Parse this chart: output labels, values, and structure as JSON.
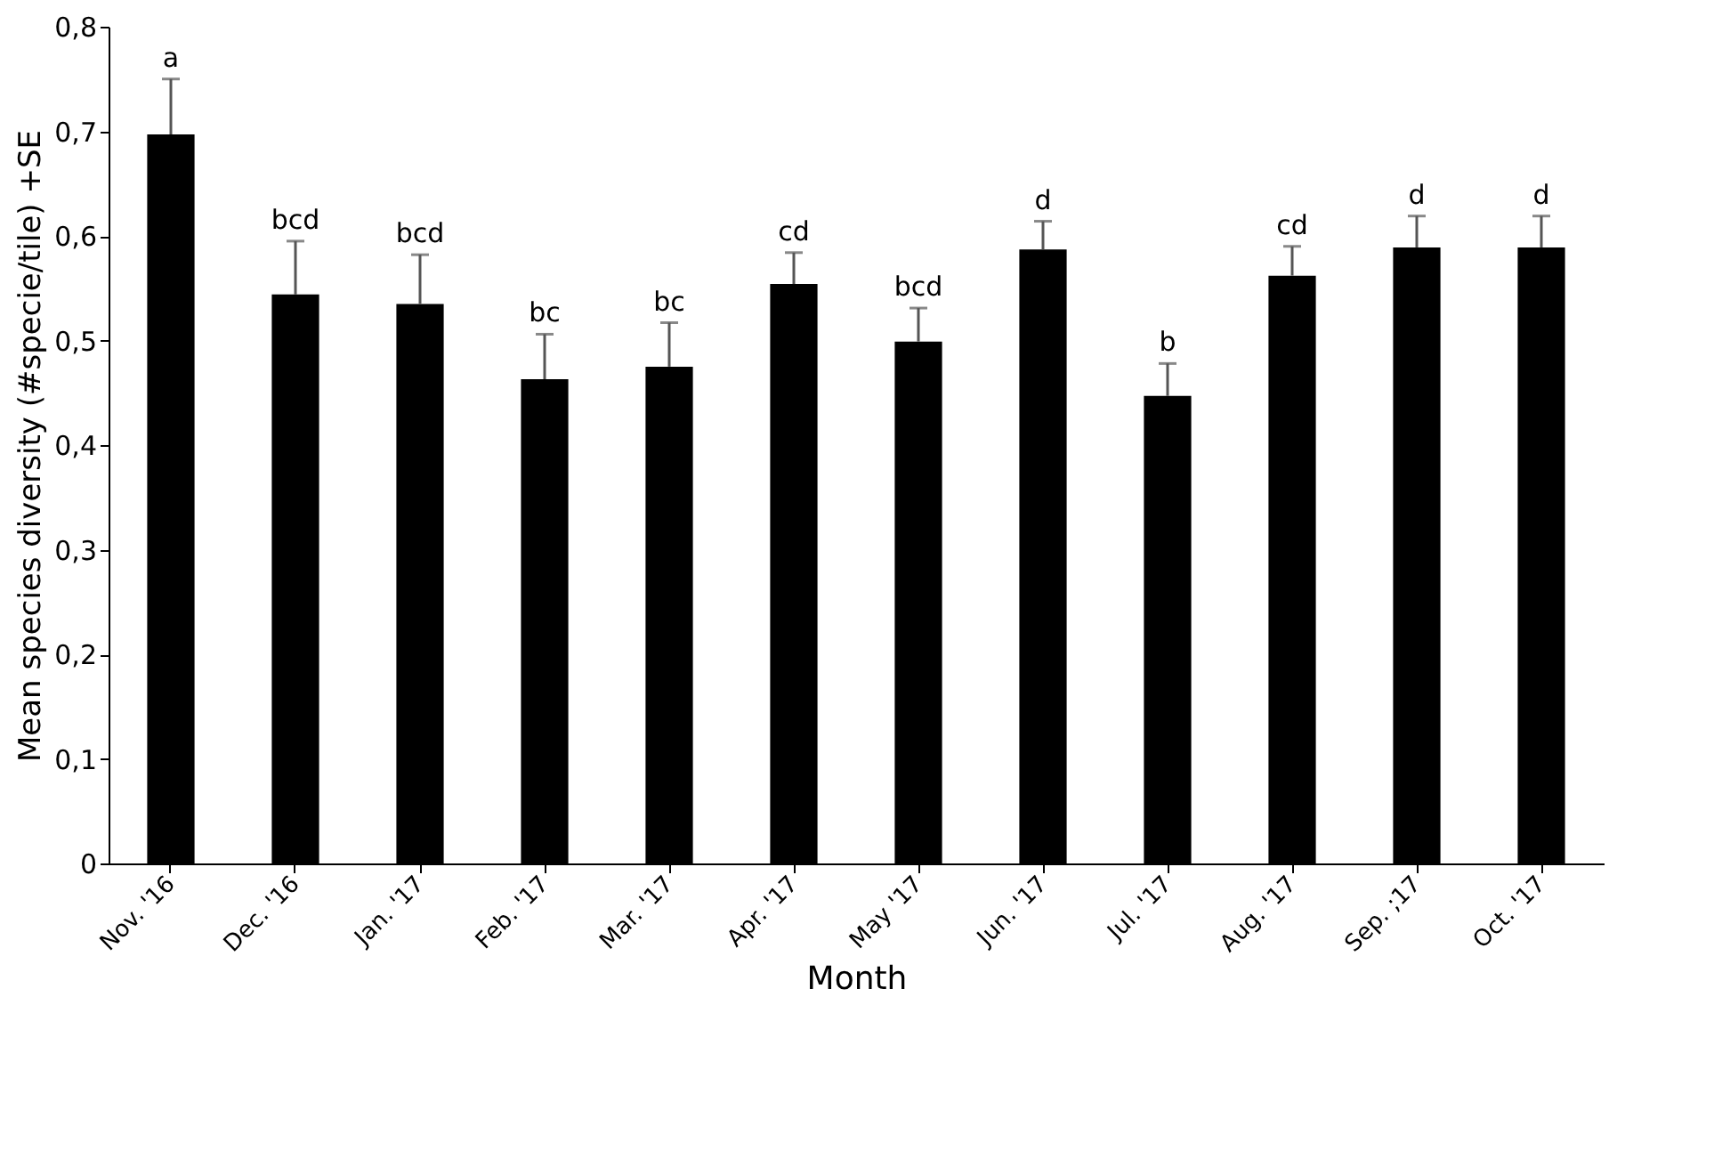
{
  "chart_data": {
    "type": "bar",
    "xlabel": "Month",
    "ylabel": "Mean species diversity (#specie/tile) +SE",
    "categories": [
      "Nov. '16",
      "Dec. '16",
      "Jan. '17",
      "Feb. '17",
      "Mar. '17",
      "Apr. '17",
      "May '17",
      "Jun. '17",
      "Jul. '17",
      "Aug. '17",
      "Sep. ;17",
      "Oct. '17"
    ],
    "series": [
      {
        "color": "#000000",
        "values": [
          0.697,
          0.544,
          0.535,
          0.463,
          0.475,
          0.554,
          0.499,
          0.587,
          0.447,
          0.562,
          0.589,
          0.589
        ],
        "errors": [
          [
            0.697,
            0.75
          ],
          [
            0.544,
            0.595
          ],
          [
            0.535,
            0.582
          ],
          [
            0.463,
            0.506
          ],
          [
            0.475,
            0.517
          ],
          [
            0.554,
            0.584
          ],
          [
            0.499,
            0.531
          ],
          [
            0.587,
            0.614
          ],
          [
            0.447,
            0.478
          ],
          [
            0.562,
            0.59
          ],
          [
            0.589,
            0.619
          ],
          [
            0.589,
            0.619
          ]
        ]
      }
    ],
    "annotations": [
      {
        "text": "a",
        "x": "Nov. '16",
        "y": 0.75
      },
      {
        "text": "bcd",
        "x": "Dec. '16",
        "y": 0.595
      },
      {
        "text": "bcd",
        "x": "Jan. '17",
        "y": 0.582
      },
      {
        "text": "bc",
        "x": "Feb. '17",
        "y": 0.506
      },
      {
        "text": "bc",
        "x": "Mar. '17",
        "y": 0.517
      },
      {
        "text": "cd",
        "x": "Apr. '17",
        "y": 0.584
      },
      {
        "text": "bcd",
        "x": "May '17",
        "y": 0.531
      },
      {
        "text": "d",
        "x": "Jun. '17",
        "y": 0.614
      },
      {
        "text": "b",
        "x": "Jul. '17",
        "y": 0.478
      },
      {
        "text": "cd",
        "x": "Aug. '17",
        "y": 0.59
      },
      {
        "text": "d",
        "x": "Sep. ;17",
        "y": 0.619
      },
      {
        "text": "d",
        "x": "Oct. '17",
        "y": 0.619
      }
    ],
    "ylim": [
      0,
      0.8
    ],
    "yticks": [
      0,
      {
        "value": 0.1,
        "label": "0,1"
      },
      {
        "value": 0.2,
        "label": "0,2"
      },
      {
        "value": 0.3,
        "label": "0,3"
      },
      {
        "value": 0.4,
        "label": "0,4"
      },
      {
        "value": 0.5,
        "label": "0,5"
      },
      {
        "value": 0.6,
        "label": "0,6"
      },
      {
        "value": 0.7,
        "label": "0,7"
      },
      {
        "value": 0.8,
        "label": "0,8"
      }
    ],
    "grid": false
  }
}
